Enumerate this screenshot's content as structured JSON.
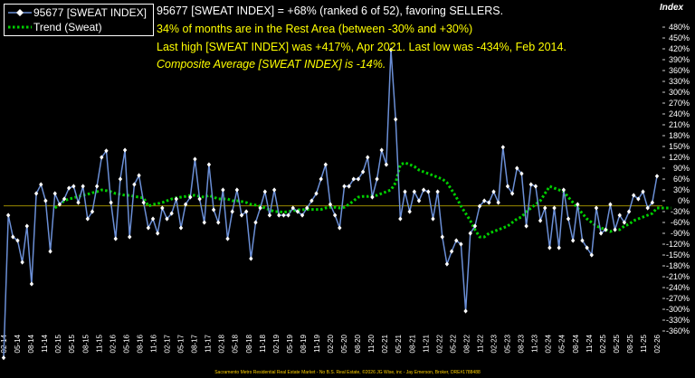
{
  "legend": [
    {
      "label": "95677 [SWEAT INDEX]",
      "color": "#6b8fd6"
    },
    {
      "label": "Trend (Sweat)",
      "color": "#00d000"
    }
  ],
  "annotations": [
    {
      "text": "95677 [SWEAT INDEX] = +68% (ranked 6 of 52), favoring SELLERS.",
      "italic": false
    },
    {
      "text": "34% of months are in the Rest Area (between -30% and +30%)",
      "italic": false
    },
    {
      "text": "Last high [SWEAT INDEX] was +417%, Apr 2021. Last low was -434%, Feb 2014.",
      "italic": false
    },
    {
      "text": "Composite Average [SWEAT INDEX] is -14%.",
      "italic": true
    }
  ],
  "y_axis_title": "Index",
  "footer": "Sacramento Metro Residential Real Estate Market - No B.S. Real Estate, ©2026 JG Wise, inc - Jay Emerson, Broker, DRE#1788488",
  "colors": {
    "background": "#000000",
    "annotation_text": "#ffff00",
    "reference_line": "#9a8a00",
    "axis_text": "#ffffff"
  },
  "chart_data": {
    "type": "line",
    "ylim": [
      -360,
      480
    ],
    "ytick_step": 30,
    "ytick_format": "percent",
    "xtick_labels": [
      "02-14",
      "05-14",
      "08-14",
      "11-14",
      "02-15",
      "05-15",
      "08-15",
      "11-15",
      "02-16",
      "05-16",
      "08-16",
      "11-16",
      "02-17",
      "05-17",
      "08-17",
      "11-17",
      "02-18",
      "05-18",
      "08-18",
      "11-18",
      "02-19",
      "05-19",
      "08-19",
      "11-19",
      "02-20",
      "05-20",
      "08-20",
      "11-20",
      "02-21",
      "05-21",
      "08-21",
      "11-21",
      "02-22",
      "05-22",
      "08-22",
      "11-22",
      "02-23",
      "05-23",
      "08-23",
      "11-23",
      "02-24",
      "05-24",
      "08-24",
      "11-24",
      "02-25",
      "05-25",
      "08-25",
      "11-25",
      "02-26"
    ],
    "reference_line": -14,
    "series": [
      {
        "name": "95677 [SWEAT INDEX]",
        "style": "line-diamond",
        "values": [
          -434,
          -40,
          -100,
          -110,
          -170,
          -70,
          -230,
          20,
          45,
          0,
          -140,
          20,
          -10,
          5,
          35,
          40,
          -5,
          40,
          -50,
          -30,
          40,
          120,
          138,
          -5,
          -105,
          60,
          140,
          -100,
          45,
          70,
          -5,
          -75,
          -50,
          -90,
          -20,
          -50,
          -35,
          5,
          -75,
          -10,
          10,
          115,
          5,
          -60,
          100,
          -25,
          -60,
          30,
          -105,
          -30,
          30,
          -40,
          -30,
          -160,
          -60,
          -20,
          25,
          -40,
          30,
          -40,
          -40,
          -40,
          -20,
          -30,
          -40,
          -20,
          0,
          20,
          60,
          100,
          -10,
          -40,
          -75,
          40,
          40,
          60,
          60,
          80,
          120,
          10,
          60,
          140,
          100,
          417,
          225,
          -50,
          25,
          -30,
          25,
          0,
          30,
          25,
          -50,
          25,
          -100,
          -175,
          -140,
          -110,
          -120,
          -305,
          -90,
          -70,
          -15,
          0,
          -5,
          25,
          -5,
          148,
          40,
          20,
          90,
          75,
          -70,
          45,
          40,
          -55,
          -20,
          -130,
          -20,
          -130,
          30,
          -50,
          -110,
          -10,
          -110,
          -130,
          -150,
          -20,
          -90,
          -80,
          -10,
          -80,
          -40,
          -60,
          -30,
          15,
          5,
          25,
          -20,
          -5,
          68
        ]
      },
      {
        "name": "Trend (Sweat)",
        "style": "dotted",
        "values": [
          null,
          null,
          null,
          null,
          null,
          null,
          null,
          null,
          null,
          null,
          null,
          -20,
          -10,
          0,
          5,
          8,
          12,
          15,
          18,
          22,
          25,
          30,
          28,
          25,
          20,
          18,
          15,
          15,
          12,
          10,
          8,
          -15,
          -10,
          -8,
          -5,
          0,
          5,
          8,
          10,
          12,
          15,
          15,
          12,
          10,
          15,
          10,
          5,
          5,
          5,
          0,
          0,
          -2,
          -5,
          -10,
          -12,
          -15,
          -20,
          -25,
          -30,
          -30,
          -32,
          -30,
          -28,
          -25,
          -25,
          -24,
          -24,
          -24,
          -24,
          -20,
          -18,
          -18,
          -20,
          -18,
          -10,
          0,
          10,
          12,
          12,
          15,
          15,
          20,
          25,
          30,
          50,
          100,
          105,
          100,
          95,
          85,
          80,
          75,
          70,
          65,
          60,
          50,
          30,
          10,
          -15,
          -35,
          -55,
          -80,
          -100,
          -100,
          -90,
          -85,
          -80,
          -75,
          -70,
          -60,
          -50,
          -45,
          -30,
          -20,
          -10,
          0,
          20,
          40,
          35,
          30,
          25,
          10,
          -5,
          -20,
          -35,
          -50,
          -60,
          -70,
          -75,
          -80,
          -85,
          -80,
          -80,
          -70,
          -65,
          -55,
          -50,
          -45,
          -40,
          -35,
          -20,
          -20,
          -20,
          -20
        ]
      }
    ]
  }
}
